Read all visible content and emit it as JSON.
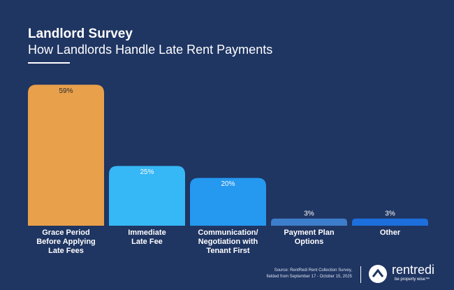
{
  "chart_data": {
    "type": "bar",
    "title": "Landlord Survey",
    "subtitle": "How Landlords Handle Late Rent Payments",
    "categories": [
      "Grace Period\nBefore Applying\nLate Fees",
      "Immediate\nLate Fee",
      "Communication/\nNegotiation with\nTenant First",
      "Payment Plan\nOptions",
      "Other"
    ],
    "values": [
      59,
      25,
      20,
      3,
      3
    ],
    "value_labels": [
      "59%",
      "25%",
      "20%",
      "3%",
      "3%"
    ],
    "colors": [
      "#e9a04b",
      "#36b7f6",
      "#2598f0",
      "#3c7ecb",
      "#1c6fdc"
    ],
    "source": "Source: RentRedi Rent Collection Survey,\nfielded from September 17 - October 15, 2025",
    "logo": {
      "name": "rentredi",
      "tagline": "be property wise™"
    }
  }
}
